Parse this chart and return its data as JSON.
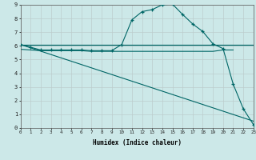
{
  "xlabel": "Humidex (Indice chaleur)",
  "bg_color": "#cce8e8",
  "grid_color": "#bbcccc",
  "line_color": "#006666",
  "xlim": [
    0,
    23
  ],
  "ylim": [
    0,
    9
  ],
  "xtick_labels": [
    "0",
    "1",
    "2",
    "3",
    "4",
    "5",
    "6",
    "7",
    "8",
    "9",
    "10",
    "11",
    "12",
    "13",
    "14",
    "15",
    "16",
    "17",
    "18",
    "19",
    "20",
    "21",
    "22",
    "23"
  ],
  "ytick_labels": [
    "0",
    "1",
    "2",
    "3",
    "4",
    "5",
    "6",
    "7",
    "8",
    "9"
  ],
  "line1_x": [
    0,
    1,
    2,
    3,
    4,
    5,
    6,
    7,
    8,
    9,
    10,
    11,
    12,
    13,
    14,
    15,
    16,
    17,
    18,
    19,
    20,
    21,
    22,
    23
  ],
  "line1_y": [
    6.1,
    5.9,
    5.7,
    5.7,
    5.7,
    5.7,
    5.7,
    5.65,
    5.65,
    5.65,
    6.1,
    7.9,
    8.5,
    8.65,
    9.0,
    9.05,
    8.3,
    7.6,
    7.05,
    6.15,
    5.8,
    3.2,
    1.4,
    0.25
  ],
  "line2_x": [
    0,
    10,
    11,
    15,
    20,
    21,
    22,
    23
  ],
  "line2_y": [
    6.1,
    6.1,
    6.1,
    6.1,
    6.1,
    6.1,
    6.1,
    6.1
  ],
  "line3_x": [
    0,
    23
  ],
  "line3_y": [
    6.1,
    0.5
  ],
  "line4_x": [
    0,
    1,
    2,
    3,
    4,
    5,
    6,
    7,
    8,
    9,
    10,
    11,
    12,
    13,
    14,
    15,
    16,
    17,
    18,
    19,
    20,
    21
  ],
  "line4_y": [
    5.75,
    5.7,
    5.65,
    5.65,
    5.65,
    5.65,
    5.65,
    5.6,
    5.6,
    5.6,
    5.6,
    5.6,
    5.6,
    5.6,
    5.6,
    5.6,
    5.6,
    5.6,
    5.6,
    5.6,
    5.7,
    5.7
  ]
}
